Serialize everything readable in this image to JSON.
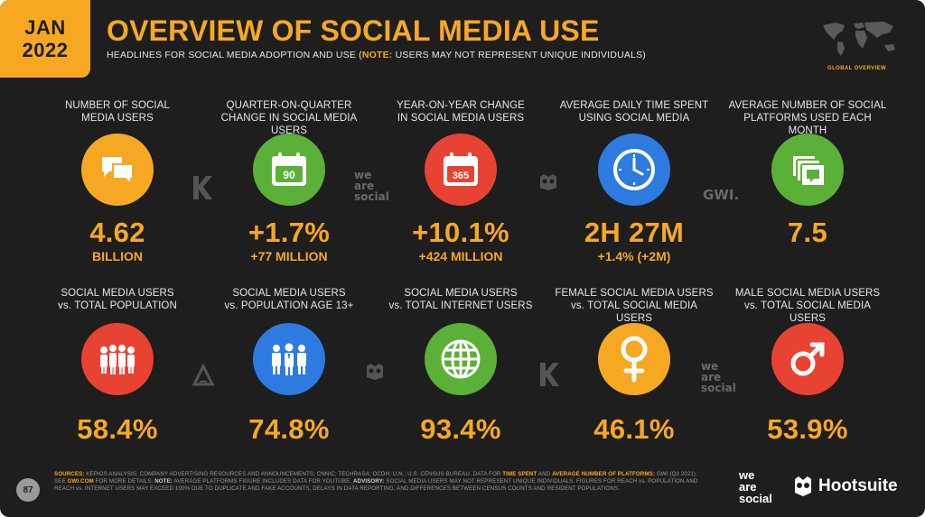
{
  "badge": {
    "month": "JAN",
    "year": "2022"
  },
  "title": "OVERVIEW OF SOCIAL MEDIA USE",
  "subtitle": {
    "main": "HEADLINES FOR SOCIAL MEDIA ADOPTION AND USE (",
    "note": "NOTE:",
    "rest": " USERS MAY NOT REPRESENT UNIQUE INDIVIDUALS)"
  },
  "section_label": "GLOBAL OVERVIEW",
  "colors": {
    "accent": "#f7a823",
    "background": "#1e1e1e",
    "orange": "#f7a823",
    "green": "#5bb137",
    "red": "#e84332",
    "blue": "#2d7be0"
  },
  "top_row": [
    {
      "label_1": "NUMBER OF SOCIAL",
      "label_2": "MEDIA USERS",
      "icon": "chat-bubbles-icon",
      "value": "4.62",
      "sub": "BILLION"
    },
    {
      "label_1": "QUARTER-ON-QUARTER",
      "label_2": "CHANGE IN SOCIAL MEDIA USERS",
      "icon": "calendar-icon",
      "icon_text": "90",
      "value": "+1.7%",
      "sub": "+77 MILLION"
    },
    {
      "label_1": "YEAR-ON-YEAR CHANGE",
      "label_2": "IN SOCIAL MEDIA USERS",
      "icon": "calendar-icon",
      "icon_text": "365",
      "value": "+10.1%",
      "sub": "+424 MILLION"
    },
    {
      "label_1": "AVERAGE DAILY TIME SPENT",
      "label_2": "USING SOCIAL MEDIA",
      "icon": "clock-icon",
      "value": "2H 27M",
      "sub": "+1.4% (+2M)"
    },
    {
      "label_1": "AVERAGE NUMBER OF SOCIAL",
      "label_2": "PLATFORMS USED EACH MONTH",
      "icon": "stacked-cards-icon",
      "value": "7.5",
      "sub": ""
    }
  ],
  "bottom_row": [
    {
      "label_1": "SOCIAL MEDIA USERS",
      "label_2": "vs. TOTAL POPULATION",
      "icon": "people-group-icon",
      "value": "58.4%"
    },
    {
      "label_1": "SOCIAL MEDIA USERS",
      "label_2": "vs. POPULATION AGE 13+",
      "icon": "adults-icon",
      "value": "74.8%"
    },
    {
      "label_1": "SOCIAL MEDIA USERS",
      "label_2": "vs. TOTAL INTERNET USERS",
      "icon": "globe-icon",
      "value": "93.4%"
    },
    {
      "label_1": "FEMALE SOCIAL MEDIA USERS",
      "label_2": "vs. TOTAL SOCIAL MEDIA USERS",
      "icon": "female-symbol-icon",
      "value": "46.1%"
    },
    {
      "label_1": "MALE SOCIAL MEDIA USERS",
      "label_2": "vs. TOTAL SOCIAL MEDIA USERS",
      "icon": "male-symbol-icon",
      "value": "53.9%"
    }
  ],
  "watermarks": {
    "gwi": "GWI."
  },
  "footer": {
    "page_number": "87",
    "sources": {
      "s1_label": "SOURCES:",
      "s1": " KEPIOS ANALYSIS; COMPANY ADVERTISING RESOURCES AND ANNOUNCEMENTS; CNNIC; TECHRASA; OCDH; U.N.; U.S. CENSUS BUREAU. DATA FOR ",
      "s1_time": "TIME SPENT",
      "s1_and": " AND ",
      "s1_avg": "AVERAGE NUMBER OF PLATFORMS:",
      "s1_end": " GWI (Q3 2021). SEE ",
      "gwi_link": "GWI.COM",
      "s2": " FOR MORE DETAILS. ",
      "note_label": "NOTE:",
      "s3": " AVERAGE PLATFORMS FIGURE INCLUDES DATA FOR YOUTUBE. ",
      "adv_label": "ADVISORY:",
      "s4": " SOCIAL MEDIA USERS MAY NOT REPRESENT UNIQUE INDIVIDUALS. FIGURES FOR REACH vs. POPULATION AND REACH vs. INTERNET USERS MAY EXCEED 100% DUE TO DUPLICATE AND FAKE ACCOUNTS, DELAYS IN DATA REPORTING, AND DIFFERENCES BETWEEN CENSUS COUNTS AND RESIDENT POPULATIONS."
    },
    "brand_1": "we are social",
    "brand_2": "Hootsuite"
  }
}
